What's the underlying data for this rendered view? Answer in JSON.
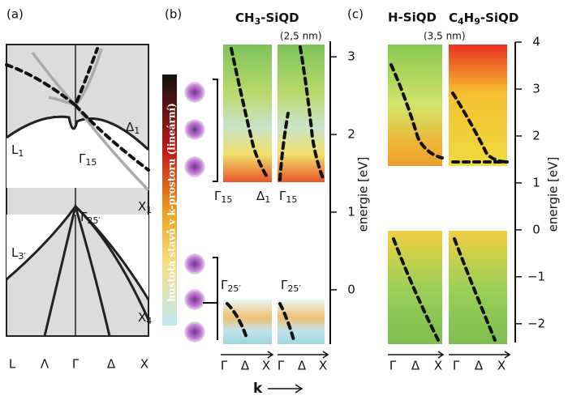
{
  "k_label": "k",
  "panel_a": {
    "label": "(a)",
    "k_points": [
      "L",
      "Λ",
      "Γ",
      "Δ",
      "X"
    ],
    "band_labels": [
      {
        "main": "Δ",
        "sub": "1"
      },
      {
        "main": "L",
        "sub": "1"
      },
      {
        "main": "Γ",
        "sub": "15"
      },
      {
        "main": "X",
        "sub": "1"
      },
      {
        "main": "Γ",
        "sub": "25′"
      },
      {
        "main": "L",
        "sub": "3′"
      },
      {
        "main": "X",
        "sub": "4"
      }
    ]
  },
  "panel_b": {
    "label": "(b)",
    "title_parts": [
      "CH",
      "3",
      "-SiQD"
    ],
    "size": "(2,5 nm)",
    "colorbar_label": "hustota stavů v k-prostoru (lineární)",
    "point_labels": [
      {
        "main": "Γ",
        "sub": "15"
      },
      {
        "main": "Δ",
        "sub": "1"
      },
      {
        "main": "Γ",
        "sub": "15"
      },
      {
        "main": "Γ",
        "sub": "25′"
      },
      {
        "main": "Γ",
        "sub": "25′"
      }
    ],
    "k_points": [
      "Γ",
      "Δ",
      "X"
    ],
    "axis_title": "energie [eV]",
    "ylim": [
      -0.7,
      3.2
    ],
    "yticks": [
      0,
      1,
      2,
      3
    ]
  },
  "panel_c": {
    "label": "(c)",
    "titles": [
      "H-SiQD"
    ],
    "title_parts": [
      "C",
      "4",
      "H",
      "9",
      "-SiQD"
    ],
    "size": "(3,5 nm)",
    "k_points": [
      "Γ",
      "Δ",
      "X"
    ],
    "axis_title": "energie [eV]",
    "ylim": [
      -2.4,
      4
    ],
    "yticks": [
      4,
      3,
      2,
      1,
      0,
      {
        "value": -1,
        "label": "−1"
      },
      {
        "value": -2,
        "label": "−2"
      }
    ]
  }
}
